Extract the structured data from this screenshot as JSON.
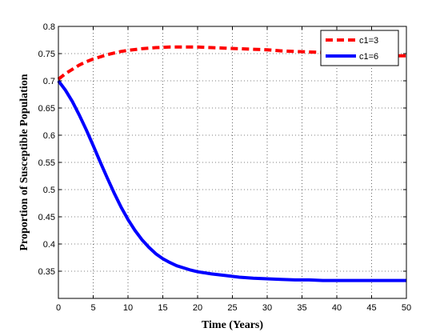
{
  "chart_data": {
    "type": "line",
    "title": "",
    "xlabel": "Time (Years)",
    "ylabel": "Proportion of Susceptible Population",
    "xlim": [
      0,
      50
    ],
    "ylim": [
      0.3,
      0.8
    ],
    "xticks": [
      0,
      5,
      10,
      15,
      20,
      25,
      30,
      35,
      40,
      45,
      50
    ],
    "yticks": [
      0.35,
      0.4,
      0.45,
      0.5,
      0.55,
      0.6,
      0.65,
      0.7,
      0.75,
      0.8
    ],
    "xtick_labels": [
      "0",
      "5",
      "10",
      "15",
      "20",
      "25",
      "30",
      "35",
      "40",
      "45",
      "50"
    ],
    "ytick_labels": [
      "0.35",
      "0.4",
      "0.45",
      "0.5",
      "0.55",
      "0.6",
      "0.65",
      "0.7",
      "0.75",
      "0.8"
    ],
    "grid": true,
    "legend_position": "top-right",
    "series": [
      {
        "name": "c1=3",
        "color": "#ff0000",
        "style": "dashed",
        "x": [
          0,
          1,
          2,
          3,
          4,
          5,
          6,
          7,
          8,
          9,
          10,
          12,
          14,
          16,
          18,
          20,
          22,
          24,
          26,
          28,
          30,
          32,
          34,
          36,
          38,
          40,
          42,
          44,
          46,
          48,
          50
        ],
        "y": [
          0.703,
          0.713,
          0.721,
          0.729,
          0.735,
          0.74,
          0.744,
          0.748,
          0.751,
          0.754,
          0.756,
          0.759,
          0.761,
          0.762,
          0.762,
          0.762,
          0.761,
          0.76,
          0.759,
          0.758,
          0.757,
          0.755,
          0.754,
          0.753,
          0.752,
          0.751,
          0.749,
          0.748,
          0.747,
          0.746,
          0.746
        ]
      },
      {
        "name": "c1=6",
        "color": "#0000ff",
        "style": "solid",
        "x": [
          0,
          1,
          2,
          3,
          4,
          5,
          6,
          7,
          8,
          9,
          10,
          11,
          12,
          13,
          14,
          15,
          16,
          17,
          18,
          19,
          20,
          22,
          24,
          26,
          28,
          30,
          32,
          34,
          36,
          38,
          40,
          42,
          44,
          46,
          48,
          50
        ],
        "y": [
          0.7,
          0.683,
          0.662,
          0.637,
          0.61,
          0.581,
          0.551,
          0.522,
          0.494,
          0.468,
          0.445,
          0.425,
          0.408,
          0.394,
          0.382,
          0.373,
          0.366,
          0.36,
          0.356,
          0.352,
          0.349,
          0.345,
          0.342,
          0.339,
          0.337,
          0.336,
          0.335,
          0.334,
          0.334,
          0.333,
          0.333,
          0.333,
          0.333,
          0.333,
          0.333,
          0.333
        ]
      }
    ]
  }
}
